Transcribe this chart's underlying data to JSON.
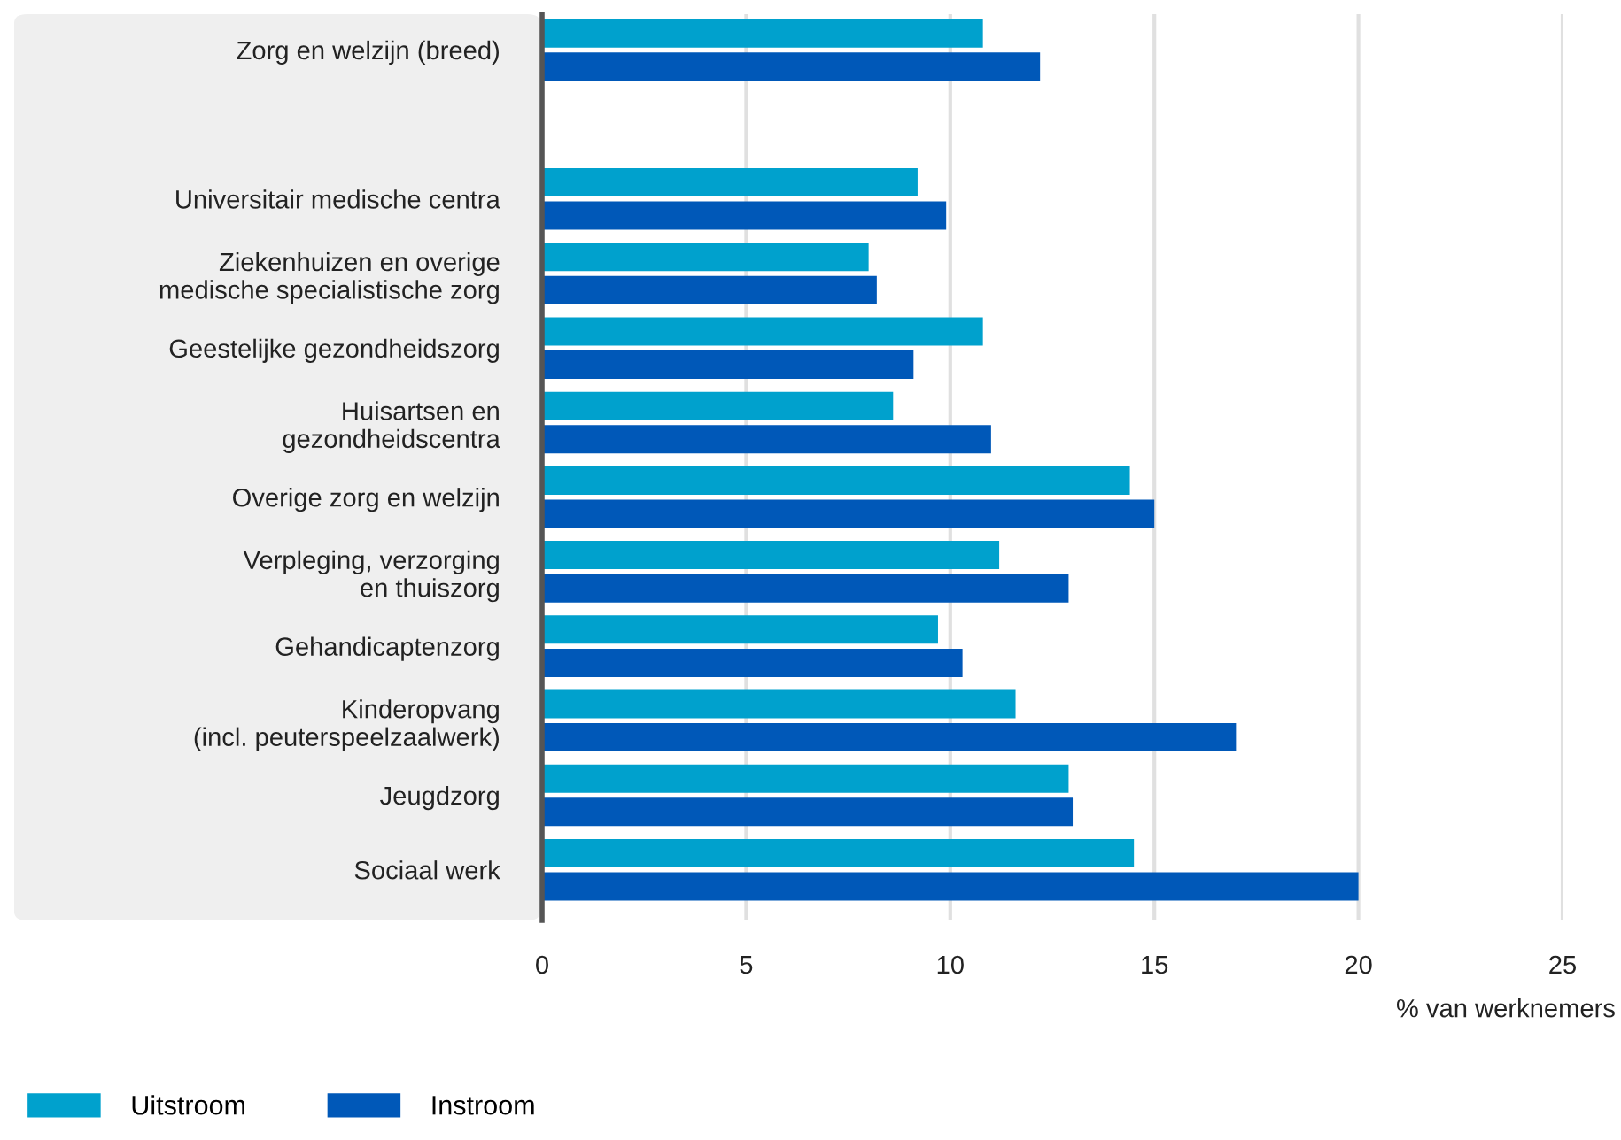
{
  "chart_data": {
    "type": "bar",
    "orientation": "horizontal",
    "categories": [
      "Zorg en welzijn (breed)",
      null,
      "Universitair medische centra",
      "Ziekenhuizen en overige\nmedische specialistische zorg",
      "Geestelijke gezondheidszorg",
      "Huisartsen en\ngezondheidscentra",
      "Overige zorg en welzijn",
      "Verpleging, verzorging\nen thuiszorg",
      "Gehandicaptenzorg",
      "Kinderopvang\n(incl. peuterspeelzaalwerk)",
      "Jeugdzorg",
      "Sociaal werk"
    ],
    "series": [
      {
        "name": "Uitstroom",
        "color": "#00a1cd",
        "values": [
          10.8,
          null,
          9.2,
          8.0,
          10.8,
          8.6,
          14.4,
          11.2,
          9.7,
          11.6,
          12.9,
          14.5
        ]
      },
      {
        "name": "Instroom",
        "color": "#0058b8",
        "values": [
          12.2,
          null,
          9.9,
          8.2,
          9.1,
          11.0,
          15.0,
          12.9,
          10.3,
          17.0,
          13.0,
          20.0
        ]
      }
    ],
    "xlabel": "% van werknemers",
    "xlim": [
      0,
      25
    ],
    "xticks": [
      0,
      5,
      10,
      15,
      20,
      25
    ],
    "grid": "x",
    "legend": "bottom left"
  }
}
